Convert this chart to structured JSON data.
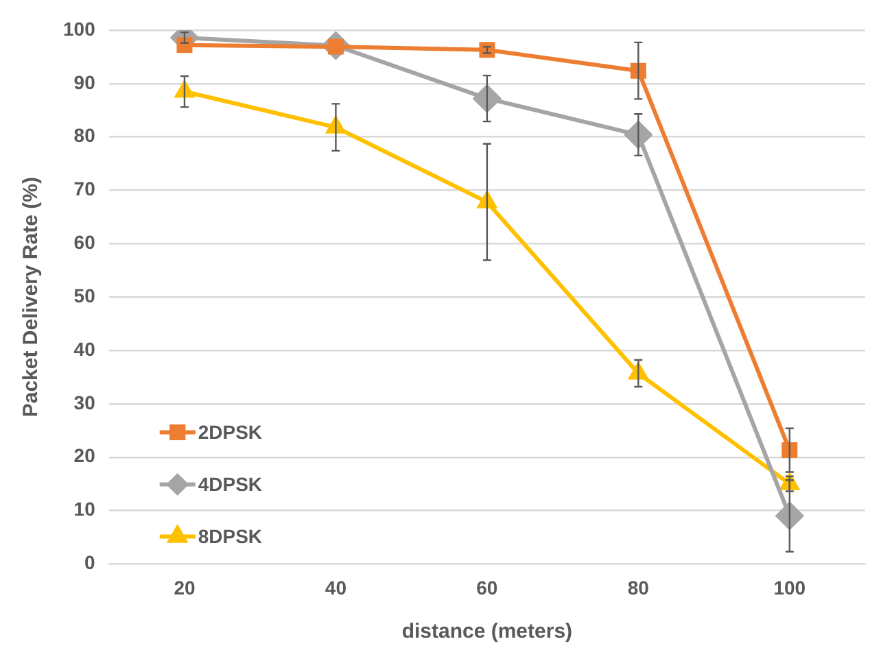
{
  "chart_data": {
    "type": "line",
    "xlabel": "distance (meters)",
    "ylabel": "Packet Delivery Rate (%)",
    "categories": [
      "20",
      "40",
      "60",
      "80",
      "100"
    ],
    "series": [
      {
        "name": "2DPSK",
        "color": "#ed7d31",
        "marker": "square",
        "values": [
          97.2,
          96.9,
          96.3,
          92.4,
          21.3
        ],
        "errors": [
          null,
          null,
          0.6,
          5.3,
          4.1
        ]
      },
      {
        "name": "4DPSK",
        "color": "#a5a5a5",
        "marker": "diamond",
        "values": [
          98.6,
          97.1,
          87.2,
          80.4,
          9.0
        ],
        "errors": [
          1.0,
          null,
          4.3,
          3.9,
          6.7
        ]
      },
      {
        "name": "8DPSK",
        "color": "#ffc000",
        "marker": "triangle",
        "values": [
          88.5,
          81.8,
          67.8,
          35.7,
          15.0
        ],
        "errors": [
          2.9,
          4.4,
          10.9,
          2.5,
          1.4
        ]
      }
    ],
    "ylim": [
      0,
      100
    ],
    "yticks": [
      0,
      10,
      20,
      30,
      40,
      50,
      60,
      70,
      80,
      90,
      100
    ],
    "grid": "y",
    "legend": "bottom left",
    "line_style": "solid"
  }
}
